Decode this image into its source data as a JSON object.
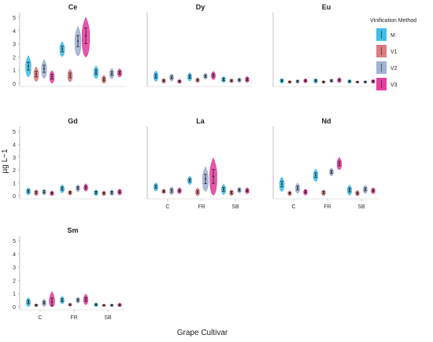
{
  "chart_data": {
    "type": "violin",
    "ylabel": "µg L−1",
    "xlabel": "Grape Cultivar",
    "legend": {
      "title": "Vinification Method",
      "placement": "right",
      "entries": [
        {
          "name": "M",
          "color": "#1fb3e6"
        },
        {
          "name": "V1",
          "color": "#d6646a"
        },
        {
          "name": "V2",
          "color": "#8fa6cc"
        },
        {
          "name": "V3",
          "color": "#e01e8c"
        }
      ]
    },
    "categories": [
      "C",
      "FR",
      "SB"
    ],
    "yticks": [
      0,
      1,
      2,
      3,
      4,
      5
    ],
    "ylim": [
      0,
      5
    ],
    "panels": [
      {
        "title": "Ce",
        "show_x_ticks": false,
        "means": [
          [
            1.3,
            0.7,
            1.1,
            0.5
          ],
          [
            2.6,
            0.6,
            3.2,
            3.6
          ],
          [
            0.85,
            0.3,
            0.75,
            0.8
          ]
        ],
        "spreads": [
          [
            0.5,
            0.35,
            0.45,
            0.3
          ],
          [
            0.35,
            0.3,
            0.7,
            1.0
          ],
          [
            0.3,
            0.2,
            0.25,
            0.2
          ]
        ]
      },
      {
        "title": "Dy",
        "show_x_ticks": false,
        "means": [
          [
            0.55,
            0.2,
            0.45,
            0.15
          ],
          [
            0.5,
            0.25,
            0.55,
            0.6
          ],
          [
            0.3,
            0.2,
            0.25,
            0.3
          ]
        ],
        "spreads": [
          [
            0.25,
            0.12,
            0.18,
            0.1
          ],
          [
            0.2,
            0.12,
            0.15,
            0.2
          ],
          [
            0.15,
            0.1,
            0.12,
            0.15
          ]
        ]
      },
      {
        "title": "Eu",
        "show_x_ticks": false,
        "means": [
          [
            0.2,
            0.1,
            0.15,
            0.2
          ],
          [
            0.2,
            0.1,
            0.2,
            0.25
          ],
          [
            0.15,
            0.1,
            0.1,
            0.15
          ]
        ],
        "spreads": [
          [
            0.12,
            0.08,
            0.1,
            0.1
          ],
          [
            0.12,
            0.08,
            0.1,
            0.12
          ],
          [
            0.1,
            0.06,
            0.08,
            0.1
          ]
        ]
      },
      {
        "title": "Gd",
        "show_x_ticks": false,
        "means": [
          [
            0.35,
            0.25,
            0.3,
            0.2
          ],
          [
            0.55,
            0.25,
            0.6,
            0.65
          ],
          [
            0.25,
            0.2,
            0.25,
            0.3
          ]
        ],
        "spreads": [
          [
            0.18,
            0.15,
            0.15,
            0.12
          ],
          [
            0.2,
            0.12,
            0.18,
            0.18
          ],
          [
            0.15,
            0.12,
            0.15,
            0.15
          ]
        ]
      },
      {
        "title": "La",
        "show_x_ticks": true,
        "means": [
          [
            0.7,
            0.35,
            0.4,
            0.4
          ],
          [
            1.2,
            0.3,
            1.3,
            1.5
          ],
          [
            0.5,
            0.25,
            0.45,
            0.4
          ]
        ],
        "spreads": [
          [
            0.2,
            0.12,
            0.2,
            0.15
          ],
          [
            0.2,
            0.2,
            0.6,
            0.9
          ],
          [
            0.25,
            0.15,
            0.15,
            0.15
          ]
        ]
      },
      {
        "title": "Nd",
        "show_x_ticks": true,
        "means": [
          [
            0.9,
            0.2,
            0.6,
            0.3
          ],
          [
            1.6,
            0.25,
            1.85,
            2.5
          ],
          [
            0.45,
            0.2,
            0.5,
            0.4
          ]
        ],
        "spreads": [
          [
            0.35,
            0.12,
            0.25,
            0.15
          ],
          [
            0.3,
            0.15,
            0.2,
            0.3
          ],
          [
            0.25,
            0.15,
            0.2,
            0.15
          ]
        ]
      },
      {
        "title": "Sm",
        "show_x_ticks": true,
        "means": [
          [
            0.35,
            0.1,
            0.3,
            0.35
          ],
          [
            0.5,
            0.15,
            0.5,
            0.55
          ],
          [
            0.15,
            0.1,
            0.1,
            0.12
          ]
        ],
        "spreads": [
          [
            0.22,
            0.08,
            0.18,
            0.5
          ],
          [
            0.18,
            0.08,
            0.15,
            0.25
          ],
          [
            0.1,
            0.06,
            0.08,
            0.1
          ]
        ]
      }
    ]
  }
}
